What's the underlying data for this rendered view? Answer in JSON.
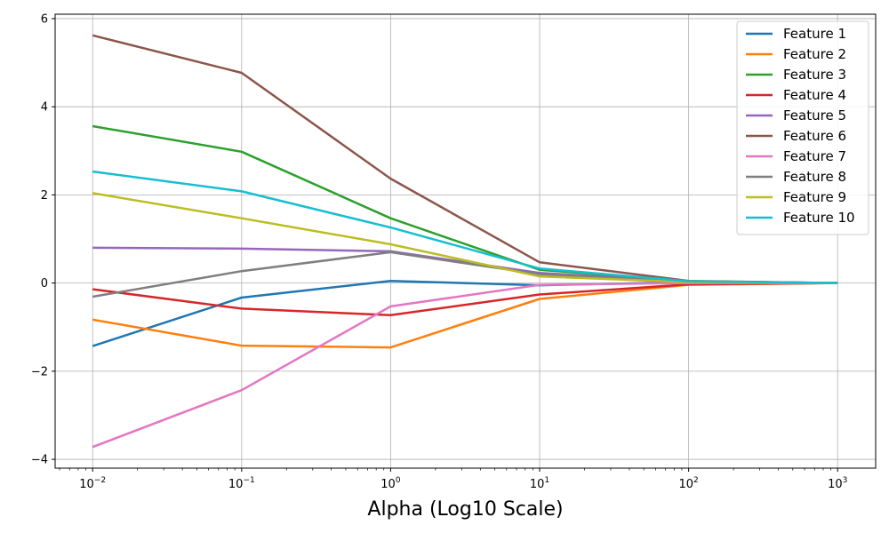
{
  "chart_data": {
    "type": "line",
    "title": "",
    "xlabel": "Alpha (Log10 Scale)",
    "ylabel": "",
    "xscale": "log",
    "x": [
      0.01,
      0.1,
      1,
      10,
      100,
      1000
    ],
    "x_tick_labels": [
      {
        "base": "10",
        "exp": "−2"
      },
      {
        "base": "10",
        "exp": "−1"
      },
      {
        "base": "10",
        "exp": "0"
      },
      {
        "base": "10",
        "exp": "1"
      },
      {
        "base": "10",
        "exp": "2"
      },
      {
        "base": "10",
        "exp": "3"
      }
    ],
    "xlim": [
      0.0056,
      1800
    ],
    "y_ticks": [
      -4,
      -2,
      0,
      2,
      4,
      6
    ],
    "y_tick_labels": [
      "−4",
      "−2",
      "0",
      "2",
      "4",
      "6"
    ],
    "ylim": [
      -4.2,
      6.1
    ],
    "grid": true,
    "legend_position": "top-right",
    "series": [
      {
        "name": "Feature 1",
        "color": "#1f77b4",
        "values": [
          -1.43,
          -0.33,
          0.05,
          -0.05,
          0.02,
          0.0
        ]
      },
      {
        "name": "Feature 2",
        "color": "#ff7f0e",
        "values": [
          -0.83,
          -1.42,
          -1.46,
          -0.36,
          -0.04,
          0.0
        ]
      },
      {
        "name": "Feature 3",
        "color": "#2ca02c",
        "values": [
          3.56,
          2.98,
          1.47,
          0.3,
          0.04,
          0.0
        ]
      },
      {
        "name": "Feature 4",
        "color": "#d62728",
        "values": [
          -0.14,
          -0.58,
          -0.73,
          -0.26,
          -0.03,
          0.0
        ]
      },
      {
        "name": "Feature 5",
        "color": "#9467bd",
        "values": [
          0.8,
          0.78,
          0.72,
          0.23,
          0.03,
          0.0
        ]
      },
      {
        "name": "Feature 6",
        "color": "#8c564b",
        "values": [
          5.62,
          4.77,
          2.37,
          0.47,
          0.05,
          0.0
        ]
      },
      {
        "name": "Feature 7",
        "color": "#e377c2",
        "values": [
          -3.72,
          -2.43,
          -0.53,
          -0.04,
          0.0,
          0.0
        ]
      },
      {
        "name": "Feature 8",
        "color": "#7f7f7f",
        "values": [
          -0.31,
          0.27,
          0.7,
          0.2,
          0.03,
          0.0
        ]
      },
      {
        "name": "Feature 9",
        "color": "#bcbd22",
        "values": [
          2.04,
          1.47,
          0.88,
          0.15,
          0.02,
          0.0
        ]
      },
      {
        "name": "Feature 10",
        "color": "#17becf",
        "values": [
          2.53,
          2.08,
          1.26,
          0.33,
          0.04,
          0.0
        ]
      }
    ]
  }
}
